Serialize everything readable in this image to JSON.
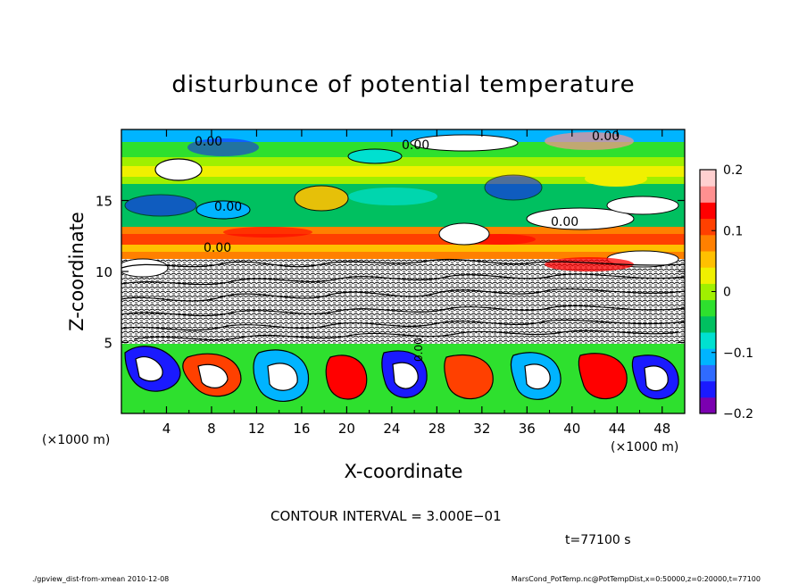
{
  "chart_data": {
    "type": "heatmap",
    "title": "disturbunce of potential temperature",
    "xlabel": "X-coordinate",
    "ylabel": "Z-coordinate",
    "x_unit_left": "(×1000 m)",
    "x_unit_right": "(×1000 m)",
    "xlim": [
      0,
      50
    ],
    "ylim": [
      0,
      20
    ],
    "x_ticks": [
      "4",
      "8",
      "12",
      "16",
      "20",
      "24",
      "28",
      "32",
      "36",
      "40",
      "44",
      "48"
    ],
    "y_ticks": [
      "5",
      "10",
      "15"
    ],
    "contour_labels": [
      "0.00",
      "0.00",
      "0.00",
      "0.00",
      "0.00",
      "0.00",
      "0.00"
    ],
    "colorbar": {
      "min": -0.2,
      "max": 0.2,
      "tick_labels": [
        "0.2",
        "0.1",
        "0",
        "−0.1",
        "−0.2"
      ],
      "colors": [
        "#7b00b0",
        "#1a1aff",
        "#2f6bff",
        "#00b4ff",
        "#00e0d0",
        "#00c060",
        "#2ee02e",
        "#a0f000",
        "#f0f000",
        "#ffc000",
        "#ff8000",
        "#ff4000",
        "#ff0000",
        "#ff9090",
        "#ffd0d0"
      ]
    },
    "contour_interval_text": "CONTOUR INTERVAL = 3.000E−01",
    "time_text": "t=77100 s",
    "footer_left": "./gpview_dist-from-xmean   2010-12-08",
    "footer_right": "MarsCond_PotTemp.nc@PotTempDist,x=0:50000,z=0:20000,t=77100"
  }
}
